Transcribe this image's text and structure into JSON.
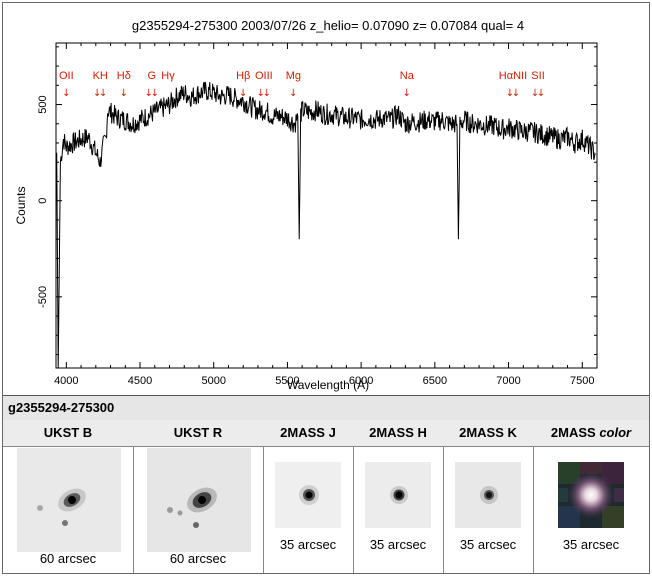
{
  "chart_data": {
    "type": "line",
    "title": "g2355294-275300 2003/07/26 z_helio= 0.07090 z= 0.07084 qual= 4",
    "xlabel": "Wavelength (Å)",
    "ylabel": "Counts",
    "xlim": [
      3930,
      7600
    ],
    "ylim": [
      -870,
      820
    ],
    "x_ticks": [
      4000,
      4500,
      5000,
      5500,
      6000,
      6500,
      7000,
      7500
    ],
    "y_ticks": [
      -500,
      0,
      500
    ],
    "grid": false,
    "line_color": "#000000",
    "annotation_color": "#d21e00",
    "spectrum": {
      "x": [
        3935,
        3945,
        3960,
        3980,
        4000,
        4050,
        4100,
        4150,
        4200,
        4230,
        4250,
        4270,
        4280,
        4300,
        4350,
        4400,
        4450,
        4500,
        4550,
        4600,
        4650,
        4700,
        4750,
        4800,
        4850,
        4900,
        4950,
        5000,
        5050,
        5100,
        5150,
        5200,
        5250,
        5300,
        5350,
        5400,
        5450,
        5500,
        5550,
        5570,
        5580,
        5590,
        5600,
        5650,
        5700,
        5750,
        5800,
        5850,
        5900,
        5950,
        6000,
        6050,
        6100,
        6150,
        6200,
        6250,
        6300,
        6350,
        6400,
        6450,
        6500,
        6550,
        6600,
        6650,
        6660,
        6670,
        6700,
        6750,
        6800,
        6850,
        6900,
        6950,
        7000,
        7050,
        7100,
        7150,
        7200,
        7250,
        7300,
        7350,
        7400,
        7450,
        7500,
        7550,
        7590
      ],
      "y": [
        250,
        -900,
        200,
        320,
        280,
        300,
        320,
        330,
        250,
        200,
        280,
        330,
        470,
        460,
        430,
        420,
        400,
        420,
        440,
        460,
        480,
        500,
        540,
        560,
        540,
        560,
        570,
        560,
        540,
        550,
        530,
        520,
        490,
        470,
        470,
        440,
        440,
        430,
        400,
        440,
        -200,
        450,
        470,
        460,
        470,
        450,
        450,
        440,
        430,
        430,
        420,
        430,
        420,
        430,
        420,
        450,
        400,
        410,
        410,
        420,
        410,
        420,
        400,
        400,
        -200,
        400,
        420,
        400,
        400,
        390,
        390,
        370,
        380,
        370,
        360,
        360,
        350,
        340,
        330,
        320,
        330,
        300,
        320,
        280,
        240
      ]
    },
    "annotations": [
      {
        "label": "OII",
        "x": 4000,
        "arrows": 1
      },
      {
        "label": "KH",
        "x": 4230,
        "arrows": 2
      },
      {
        "label": "Hδ",
        "x": 4390,
        "arrows": 1
      },
      {
        "label": "G",
        "x": 4580,
        "arrows": 2
      },
      {
        "label": "Hγ",
        "x": 4690,
        "arrows": 0
      },
      {
        "label": "Hβ",
        "x": 5200,
        "arrows": 1
      },
      {
        "label": "OIII",
        "x": 5340,
        "arrows": 2
      },
      {
        "label": "Mg",
        "x": 5540,
        "arrows": 1
      },
      {
        "label": "Na",
        "x": 6310,
        "arrows": 1
      },
      {
        "label": "HαNII",
        "x": 7030,
        "arrows": 2
      },
      {
        "label": "SII",
        "x": 7200,
        "arrows": 2
      }
    ]
  },
  "object_id": "g2355294-275300",
  "thumbnails": [
    {
      "title": "UKST B",
      "scale": "60 arcsec",
      "type": "optical"
    },
    {
      "title": "UKST R",
      "scale": "60 arcsec",
      "type": "optical"
    },
    {
      "title": "2MASS J",
      "scale": "35 arcsec",
      "type": "ir"
    },
    {
      "title": "2MASS H",
      "scale": "35 arcsec",
      "type": "ir"
    },
    {
      "title": "2MASS K",
      "scale": "35 arcsec",
      "type": "ir"
    },
    {
      "title_prefix": "2MASS",
      "title_italic": "color",
      "scale": "35 arcsec",
      "type": "color"
    }
  ]
}
